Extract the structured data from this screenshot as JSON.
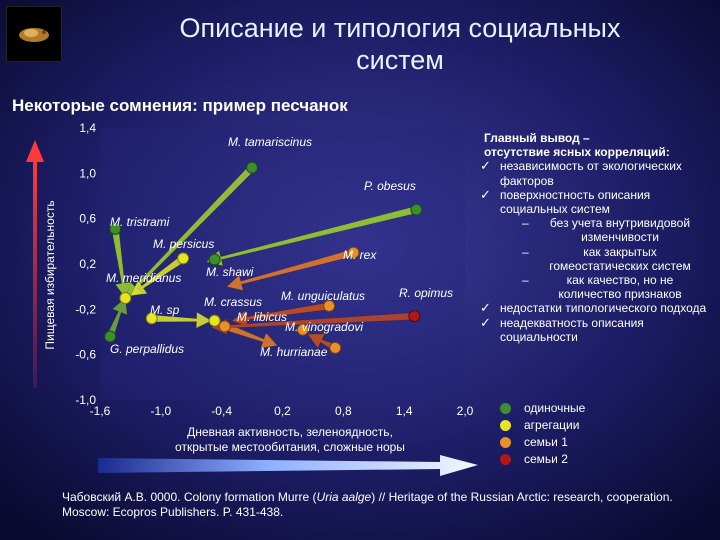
{
  "header": {
    "title_line1": "Описание и типология социальных",
    "title_line2": "систем",
    "subtitle": "Некоторые сомнения: пример песчанок"
  },
  "chart_data": {
    "type": "scatter",
    "xlabel_line1": "Дневная активность, зеленоядность,",
    "xlabel_line2": "открытые местообитания, сложные норы",
    "ylabel": "Пищевая избирательность",
    "xlim": [
      -1.6,
      2.0
    ],
    "ylim": [
      -1.0,
      1.4
    ],
    "x_ticks": [
      "-1,6",
      "-1,0",
      "-0,4",
      "0,2",
      "0,8",
      "1,4",
      "2,0"
    ],
    "x_tick_values": [
      -1.6,
      -1.0,
      -0.4,
      0.2,
      0.8,
      1.4,
      2.0
    ],
    "y_ticks": [
      "1,4",
      "1,0",
      "0,6",
      "0,2",
      "-0,2",
      "-0,6",
      "-1,0"
    ],
    "y_tick_values": [
      1.4,
      1.0,
      0.6,
      0.2,
      -0.2,
      -0.6,
      -1.0
    ],
    "points": [
      {
        "label": "M. tamariscinus",
        "x": -0.1,
        "y": 1.05,
        "group": 0
      },
      {
        "label": "P. obesus",
        "x": 1.52,
        "y": 0.68,
        "group": 0
      },
      {
        "label": "M. tristrami",
        "x": -1.45,
        "y": 0.51,
        "group": 0
      },
      {
        "label": "M. persicus",
        "x": -0.78,
        "y": 0.25,
        "group": 1
      },
      {
        "label": "M. rex",
        "x": 0.9,
        "y": 0.3,
        "group": 2
      },
      {
        "label": "M. meridianus",
        "x": -1.35,
        "y": -0.1,
        "group": 1
      },
      {
        "label": "M. shawi",
        "x": -0.47,
        "y": 0.24,
        "group": 0
      },
      {
        "label": "M. crassus",
        "x": -0.37,
        "y": -0.35,
        "group": 2
      },
      {
        "label": "M. unguiculatus",
        "x": 0.66,
        "y": -0.17,
        "group": 2
      },
      {
        "label": "R. opimus",
        "x": 1.5,
        "y": -0.26,
        "group": 3
      },
      {
        "label": "M. libicus",
        "x": -0.47,
        "y": -0.3,
        "group": 1
      },
      {
        "label": "M. vinogradovi",
        "x": 0.4,
        "y": -0.38,
        "group": 2
      },
      {
        "label": "M. hurrianae",
        "x": 0.72,
        "y": -0.54,
        "group": 2
      },
      {
        "label": "G. perpallidus",
        "x": -1.5,
        "y": -0.44,
        "group": 0
      },
      {
        "label": "M. sp",
        "x": -1.09,
        "y": -0.28,
        "group": 1
      }
    ],
    "arrows": [
      {
        "from": [
          -0.1,
          1.05
        ],
        "to": [
          -1.35,
          -0.1
        ],
        "color": "#9acd32"
      },
      {
        "from": [
          1.52,
          0.68
        ],
        "to": [
          -0.55,
          0.22
        ],
        "color": "#9acd32"
      },
      {
        "from": [
          -1.45,
          0.51
        ],
        "to": [
          -1.35,
          -0.1
        ],
        "color": "#9acd32"
      },
      {
        "from": [
          -1.5,
          -0.44
        ],
        "to": [
          -1.35,
          -0.1
        ],
        "color": "#6fa83a"
      },
      {
        "from": [
          -0.78,
          0.25
        ],
        "to": [
          -1.3,
          -0.08
        ],
        "color": "#d8e030"
      },
      {
        "from": [
          -1.09,
          -0.28
        ],
        "to": [
          -0.5,
          -0.3
        ],
        "color": "#d8e030"
      },
      {
        "from": [
          0.9,
          0.3
        ],
        "to": [
          -0.35,
          0.0
        ],
        "color": "#e07a2a"
      },
      {
        "from": [
          -0.37,
          -0.35
        ],
        "to": [
          0.15,
          -0.52
        ],
        "color": "#e07a2a"
      },
      {
        "from": [
          0.66,
          -0.17
        ],
        "to": [
          -0.3,
          -0.3
        ],
        "color": "#c8501e"
      },
      {
        "from": [
          1.5,
          -0.26
        ],
        "to": [
          -0.5,
          -0.36
        ],
        "color": "#b8462a"
      },
      {
        "from": [
          0.72,
          -0.54
        ],
        "to": [
          0.45,
          -0.42
        ],
        "color": "#c8501e"
      }
    ],
    "legend": [
      {
        "label": "одиночные",
        "color": "#3d8f2e"
      },
      {
        "label": "агрегации",
        "color": "#e6e620"
      },
      {
        "label": "семьи 1",
        "color": "#e8902a"
      },
      {
        "label": "семьи 2",
        "color": "#b01818"
      }
    ]
  },
  "conclusions": {
    "head_line1": "Главный вывод –",
    "head_line2": "отсутствие ясных корреляций:",
    "items": [
      {
        "text": "независимость от экологических факторов"
      },
      {
        "text": "поверхностность описания социальных систем",
        "subs": [
          "без учета внутривидовой изменчивости",
          "как закрытых гомеостатических систем",
          "как качество, но не количество признаков"
        ]
      },
      {
        "text": "недостатки типологического подхода"
      },
      {
        "text": "неадекватность описания социальности"
      }
    ]
  },
  "footer": {
    "before": "Чабовский А.В. 0000. Colony formation Murre (",
    "italic": "Uria aalge",
    "after": ") // Heritage of the Russian Arctic: research, cooperation. Moscow: Ecopros Publishers. P. 431-438."
  }
}
